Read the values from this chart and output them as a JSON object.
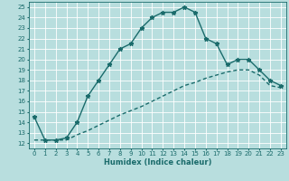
{
  "xlabel": "Humidex (Indice chaleur)",
  "bg_color": "#b8dede",
  "grid_color": "#ffffff",
  "line_color": "#1a6b6b",
  "xlim": [
    -0.5,
    23.5
  ],
  "ylim": [
    11.5,
    25.5
  ],
  "x_ticks": [
    0,
    1,
    2,
    3,
    4,
    5,
    6,
    7,
    8,
    9,
    10,
    11,
    12,
    13,
    14,
    15,
    16,
    17,
    18,
    19,
    20,
    21,
    22,
    23
  ],
  "y_ticks": [
    12,
    13,
    14,
    15,
    16,
    17,
    18,
    19,
    20,
    21,
    22,
    23,
    24,
    25
  ],
  "line1_x": [
    0,
    1,
    2,
    3,
    4,
    5,
    6,
    7,
    8,
    9,
    10,
    11,
    12,
    13,
    14,
    15,
    16,
    17,
    18,
    19,
    20,
    21,
    22,
    23
  ],
  "line1_y": [
    14.5,
    12.3,
    12.3,
    12.5,
    14.0,
    16.5,
    18.0,
    19.5,
    21.0,
    21.5,
    23.0,
    24.0,
    24.5,
    24.5,
    25.0,
    24.5,
    22.0,
    21.5,
    19.5,
    20.0,
    20.0,
    19.0,
    18.0,
    17.5
  ],
  "line2_x": [
    0,
    1,
    2,
    3,
    4,
    5,
    6,
    7,
    8,
    9,
    10,
    11,
    12,
    13,
    14,
    15,
    16,
    17,
    18,
    19,
    20,
    21,
    22,
    23
  ],
  "line2_y": [
    12.3,
    12.3,
    12.3,
    12.3,
    12.8,
    13.2,
    13.7,
    14.2,
    14.7,
    15.1,
    15.5,
    16.0,
    16.5,
    17.0,
    17.5,
    17.8,
    18.2,
    18.5,
    18.8,
    19.0,
    19.0,
    18.5,
    17.5,
    17.3
  ],
  "marker": "*",
  "markersize": 3.5,
  "linewidth": 1.0,
  "fontsize_label": 6,
  "fontsize_tick": 5
}
